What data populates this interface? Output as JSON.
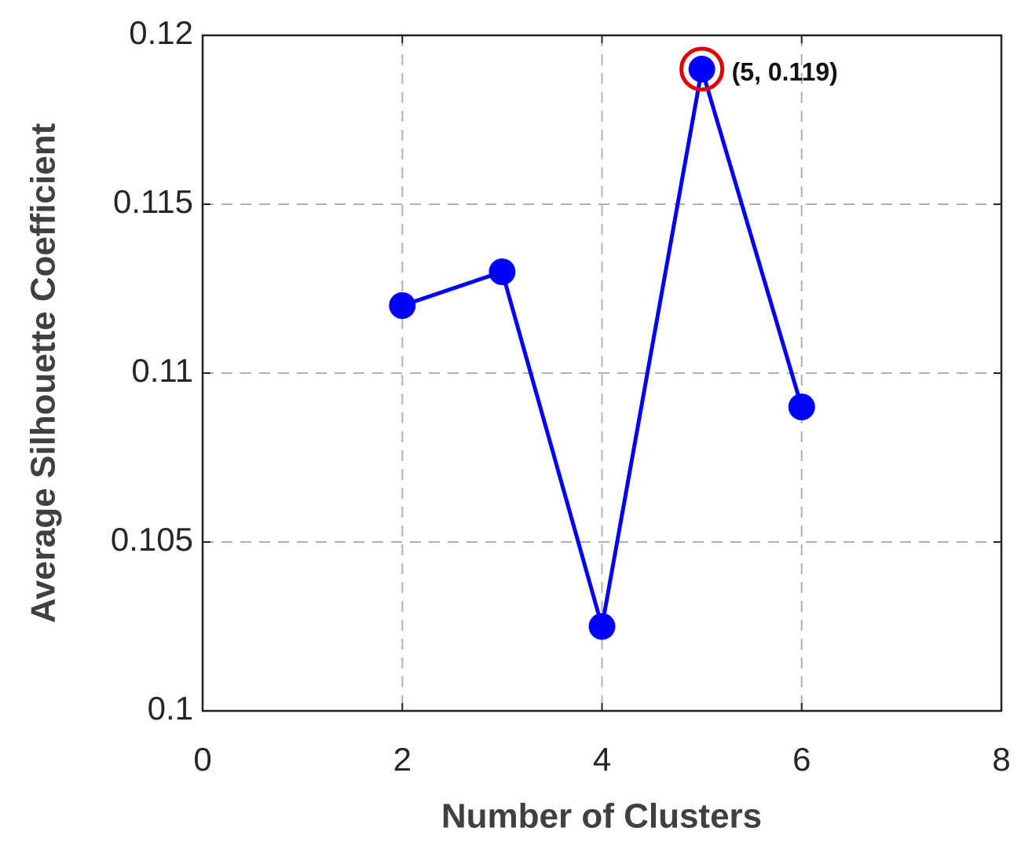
{
  "chart_data": {
    "type": "line",
    "x_label": "Number of Clusters",
    "y_label": "Average Silhouette Coefficient",
    "x": [
      2,
      3,
      4,
      5,
      6
    ],
    "series": [
      {
        "color": "#0000ff",
        "values": [
          0.112,
          0.113,
          0.1025,
          0.119,
          0.109
        ]
      }
    ],
    "xlim": [
      0,
      8
    ],
    "xticks": [
      0,
      2,
      4,
      6,
      8
    ],
    "ylim": [
      0.1,
      0.12
    ],
    "yticks": [
      0.1,
      0.105,
      0.11,
      0.115,
      0.12
    ],
    "grid": true,
    "annotation": "(5, 0.119)",
    "highlight_color": "#e00000"
  }
}
